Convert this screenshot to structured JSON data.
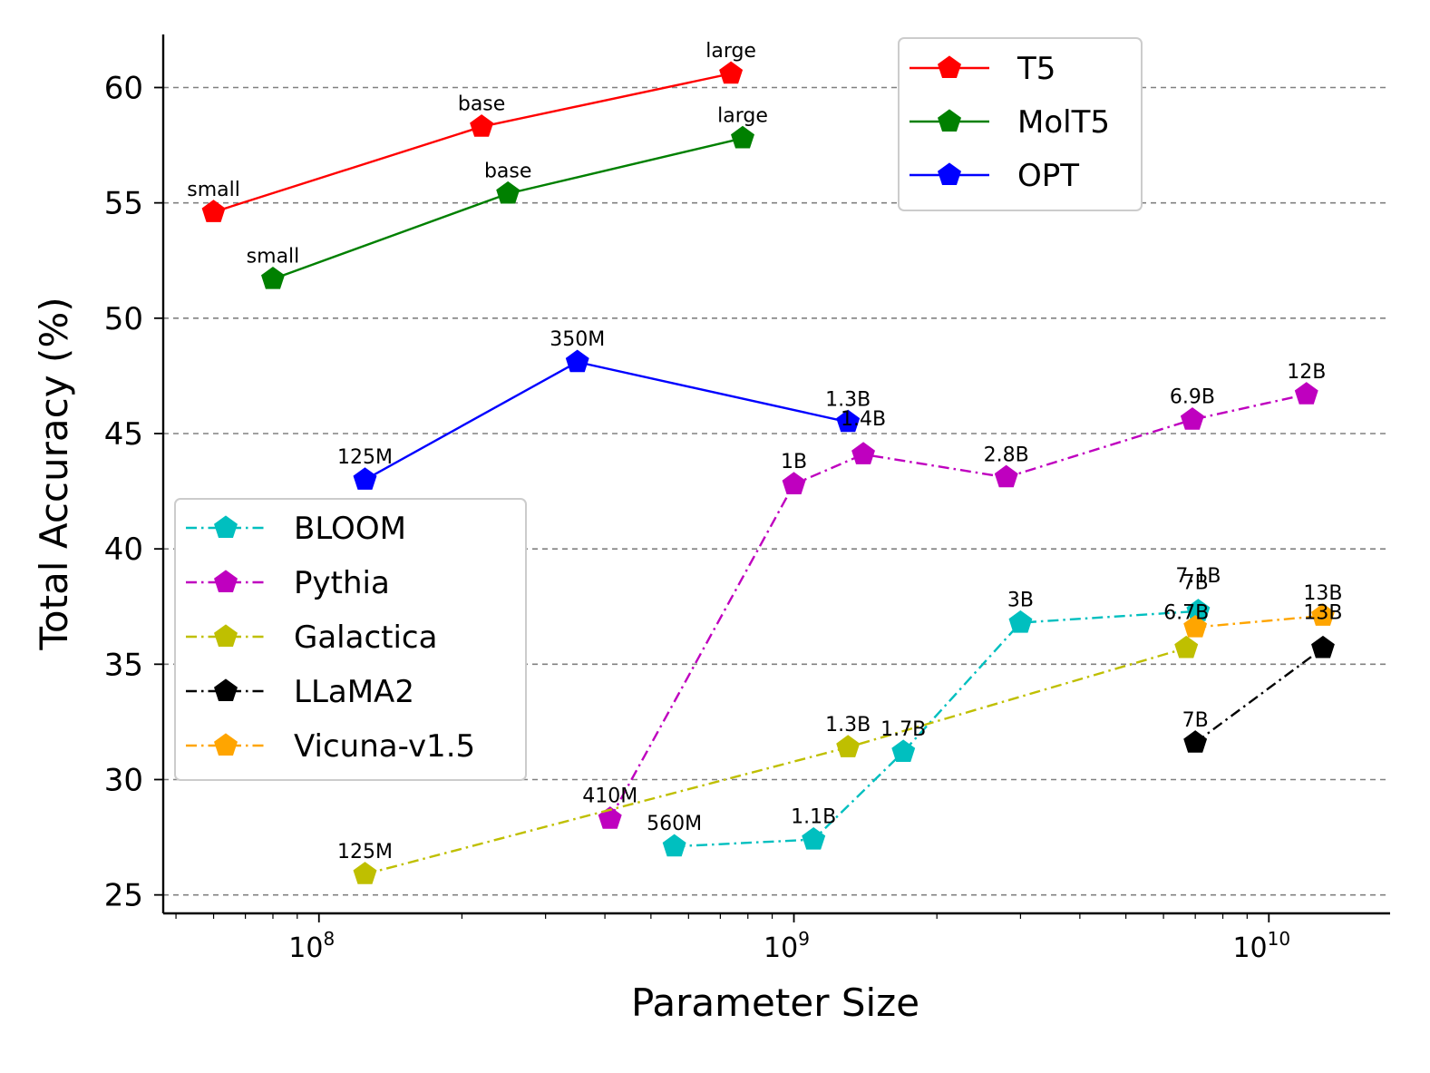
{
  "chart_data": {
    "type": "line",
    "xlabel": "Parameter Size",
    "ylabel": "Total Accuracy (%)",
    "x_scale": "log",
    "xlim": [
      47000000,
      18000000000
    ],
    "ylim": [
      24.2,
      62.3
    ],
    "x_ticks": [
      {
        "value": 100000000,
        "base": "10",
        "exp": "8"
      },
      {
        "value": 1000000000,
        "base": "10",
        "exp": "9"
      },
      {
        "value": 10000000000,
        "base": "10",
        "exp": "10"
      }
    ],
    "y_ticks": [
      25,
      30,
      35,
      40,
      45,
      50,
      55,
      60
    ],
    "grid": "horizontal-dashed",
    "legends": [
      {
        "placement": "top-right",
        "entries": [
          "T5",
          "MolT5",
          "OPT"
        ]
      },
      {
        "placement": "lower-left",
        "entries": [
          "BLOOM",
          "Pythia",
          "Galactica",
          "LLaMA2",
          "Vicuna-v1.5"
        ]
      }
    ],
    "series": [
      {
        "name": "T5",
        "color": "#ff0000",
        "linestyle": "solid",
        "points": [
          {
            "x": 60000000,
            "y": 54.6,
            "label": "small"
          },
          {
            "x": 220000000,
            "y": 58.3,
            "label": "base"
          },
          {
            "x": 737000000,
            "y": 60.6,
            "label": "large"
          }
        ]
      },
      {
        "name": "MolT5",
        "color": "#008000",
        "linestyle": "solid",
        "points": [
          {
            "x": 80000000,
            "y": 51.7,
            "label": "small"
          },
          {
            "x": 250000000,
            "y": 55.4,
            "label": "base"
          },
          {
            "x": 780000000,
            "y": 57.8,
            "label": "large"
          }
        ]
      },
      {
        "name": "OPT",
        "color": "#0000ff",
        "linestyle": "solid",
        "points": [
          {
            "x": 125000000,
            "y": 43.0,
            "label": "125M"
          },
          {
            "x": 350000000,
            "y": 48.1,
            "label": "350M"
          },
          {
            "x": 1300000000,
            "y": 45.5,
            "label": "1.3B"
          }
        ]
      },
      {
        "name": "BLOOM",
        "color": "#00bfbf",
        "linestyle": "dashdot",
        "points": [
          {
            "x": 560000000,
            "y": 27.1,
            "label": "560M"
          },
          {
            "x": 1100000000,
            "y": 27.4,
            "label": "1.1B"
          },
          {
            "x": 1700000000,
            "y": 31.2,
            "label": "1.7B"
          },
          {
            "x": 3000000000,
            "y": 36.8,
            "label": "3B"
          },
          {
            "x": 7100000000,
            "y": 37.3,
            "label": "7.1B"
          }
        ]
      },
      {
        "name": "Pythia",
        "color": "#bf00bf",
        "linestyle": "dashdot",
        "points": [
          {
            "x": 410000000,
            "y": 28.3,
            "label": "410M"
          },
          {
            "x": 1000000000,
            "y": 42.8,
            "label": "1B"
          },
          {
            "x": 1400000000,
            "y": 44.1,
            "label": "1.4B"
          },
          {
            "x": 2800000000,
            "y": 43.1,
            "label": "2.8B"
          },
          {
            "x": 6900000000,
            "y": 45.6,
            "label": "6.9B"
          },
          {
            "x": 12000000000,
            "y": 46.7,
            "label": "12B"
          }
        ]
      },
      {
        "name": "Galactica",
        "color": "#bfbf00",
        "linestyle": "dashdot",
        "points": [
          {
            "x": 125000000,
            "y": 25.9,
            "label": "125M"
          },
          {
            "x": 1300000000,
            "y": 31.4,
            "label": "1.3B"
          },
          {
            "x": 6700000000,
            "y": 35.7,
            "label": "6.7B"
          }
        ]
      },
      {
        "name": "LLaMA2",
        "color": "#000000",
        "linestyle": "dashdot",
        "points": [
          {
            "x": 7000000000,
            "y": 31.6,
            "label": "7B"
          },
          {
            "x": 13000000000,
            "y": 35.7,
            "label": "13B"
          }
        ]
      },
      {
        "name": "Vicuna-v1.5",
        "color": "#ffa500",
        "linestyle": "dashdot",
        "points": [
          {
            "x": 7000000000,
            "y": 36.6,
            "label": "7B"
          },
          {
            "x": 13000000000,
            "y": 37.1,
            "label": "13B"
          }
        ]
      }
    ]
  }
}
